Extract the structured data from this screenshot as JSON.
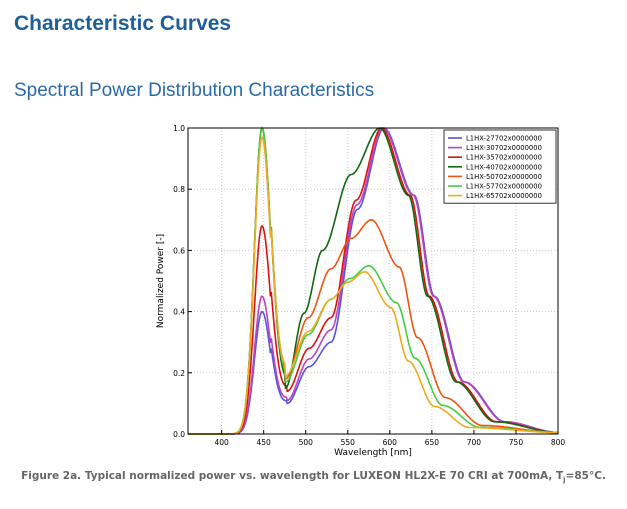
{
  "page": {
    "title": "Characteristic Curves",
    "subtitle": "Spectral Power Distribution Characteristics",
    "caption": {
      "prefix": "Figure 2a. Typical normalized power vs. wavelength for LUXEON HL2X-E 70 CRI at 700mA, T",
      "sub": "j",
      "suffix": "=85°C."
    }
  },
  "chart_data": {
    "type": "line",
    "title": "",
    "xlabel": "Wavelength [nm]",
    "ylabel": "Normalized Power [-]",
    "xlim": [
      360,
      800
    ],
    "ylim": [
      0,
      1.0
    ],
    "xticks": [
      400,
      450,
      500,
      550,
      600,
      650,
      700,
      750,
      800
    ],
    "yticks": [
      "0.0",
      "0.2",
      "0.4",
      "0.6",
      "0.8",
      "1.0"
    ],
    "grid": true,
    "legend_position": "top-right",
    "series": [
      {
        "name": "L1HX-27702x0000000",
        "color": "#5555dd",
        "blue_peak": 0.4,
        "valley": [
          478,
          0.1
        ],
        "mid": [
          530,
          0.3
        ],
        "main_peak": [
          593,
          1.0
        ],
        "half_width_right": 60
      },
      {
        "name": "L1HX-30702x0000000",
        "color": "#bb44bb",
        "blue_peak": 0.45,
        "valley": [
          478,
          0.11
        ],
        "mid": [
          530,
          0.34
        ],
        "main_peak": [
          592,
          1.0
        ],
        "half_width_right": 60
      },
      {
        "name": "L1HX-35702x0000000",
        "color": "#dd1111",
        "blue_peak": 0.68,
        "valley": [
          478,
          0.14
        ],
        "mid": [
          530,
          0.38
        ],
        "main_peak": [
          590,
          1.0
        ],
        "half_width_right": 57
      },
      {
        "name": "L1HX-40702x0000000",
        "color": "#116611",
        "blue_peak": 1.0,
        "valley": [
          476,
          0.15
        ],
        "mid": [
          520,
          0.6
        ],
        "main_peak": [
          588,
          1.0
        ],
        "half_width_right": 57
      },
      {
        "name": "L1HX-50702x0000000",
        "color": "#ee5511",
        "blue_peak": 1.0,
        "valley": [
          476,
          0.18
        ],
        "mid": [
          530,
          0.54
        ],
        "main_peak": [
          578,
          0.7
        ],
        "half_width_right": 55
      },
      {
        "name": "L1HX-57702x0000000",
        "color": "#44cc44",
        "blue_peak": 1.0,
        "valley": [
          476,
          0.17
        ],
        "mid": [
          530,
          0.44
        ],
        "main_peak": [
          575,
          0.55
        ],
        "half_width_right": 55
      },
      {
        "name": "L1HX-65702x0000000",
        "color": "#eeaa22",
        "blue_peak": 0.97,
        "valley": [
          476,
          0.19
        ],
        "mid": [
          530,
          0.44
        ],
        "main_peak": [
          570,
          0.53
        ],
        "half_width_right": 52
      }
    ]
  }
}
